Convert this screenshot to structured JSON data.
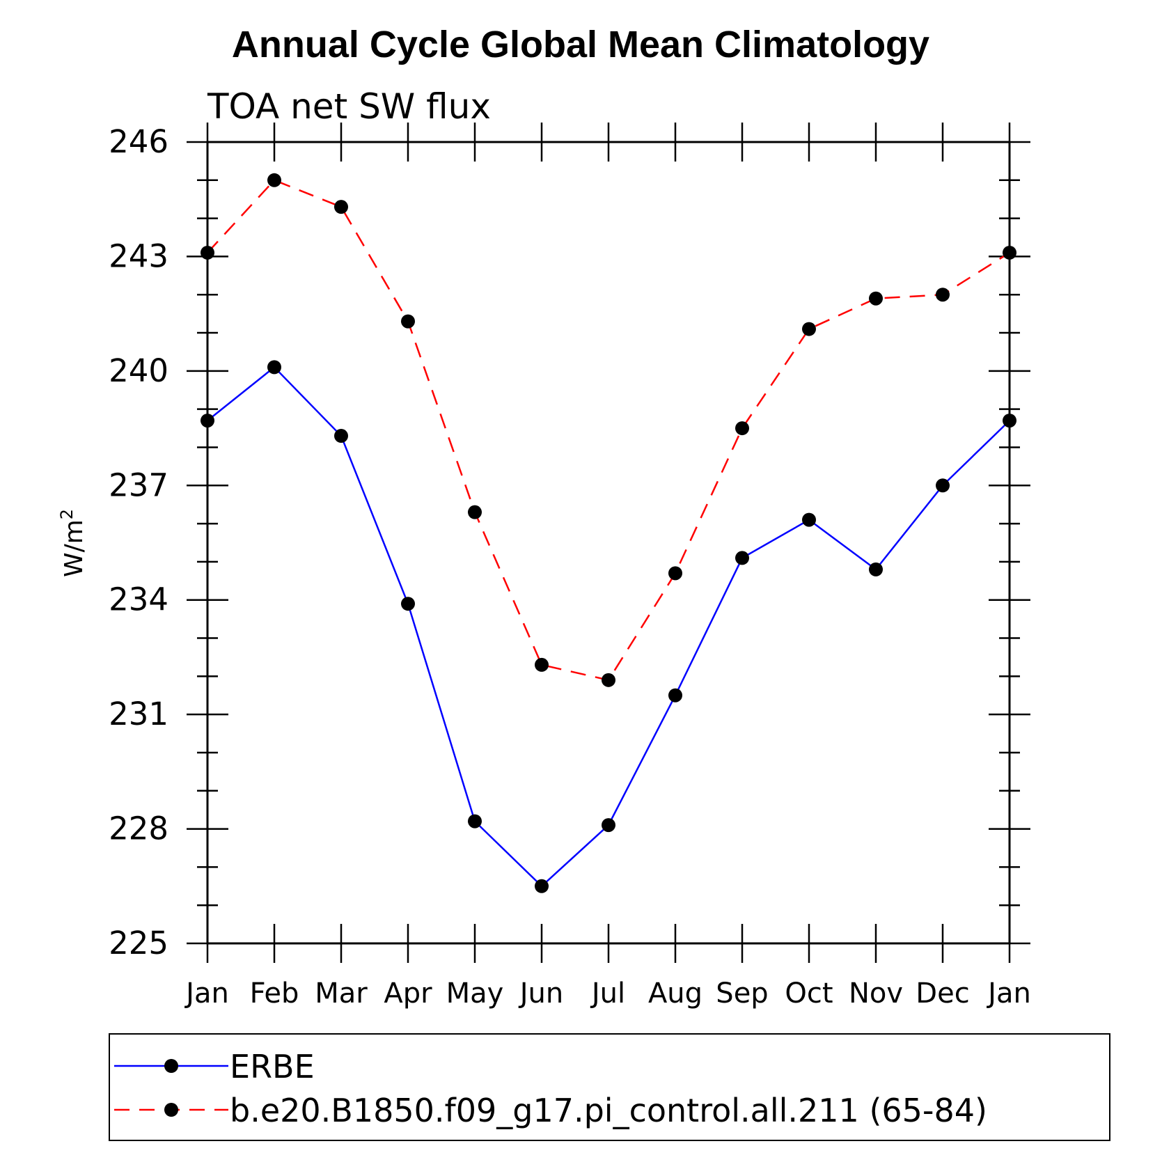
{
  "chart_data": {
    "type": "line",
    "title": "Annual Cycle Global Mean Climatology",
    "subtitle": "TOA net SW flux",
    "xlabel": "",
    "ylabel_base": "W/m",
    "ylabel_sup": "2",
    "categories": [
      "Jan",
      "Feb",
      "Mar",
      "Apr",
      "May",
      "Jun",
      "Jul",
      "Aug",
      "Sep",
      "Oct",
      "Nov",
      "Dec",
      "Jan"
    ],
    "ylim": [
      225,
      246
    ],
    "yticks": [
      225,
      228,
      231,
      234,
      237,
      240,
      243,
      246
    ],
    "grid": false,
    "legend_position": "bottom",
    "series": [
      {
        "name": "ERBE",
        "color": "#0000ff",
        "dash": "solid",
        "marker": "filled-circle",
        "values": [
          238.7,
          240.1,
          238.3,
          233.9,
          228.2,
          226.5,
          228.1,
          231.5,
          235.1,
          236.1,
          234.8,
          237.0,
          238.7
        ]
      },
      {
        "name": "b.e20.B1850.f09_g17.pi_control.all.211 (65-84)",
        "color": "#ff0000",
        "dash": "dashed",
        "marker": "filled-circle",
        "values": [
          243.1,
          245.0,
          244.3,
          241.3,
          236.3,
          232.3,
          231.9,
          234.7,
          238.5,
          241.1,
          241.9,
          242.0,
          243.1
        ]
      }
    ]
  }
}
